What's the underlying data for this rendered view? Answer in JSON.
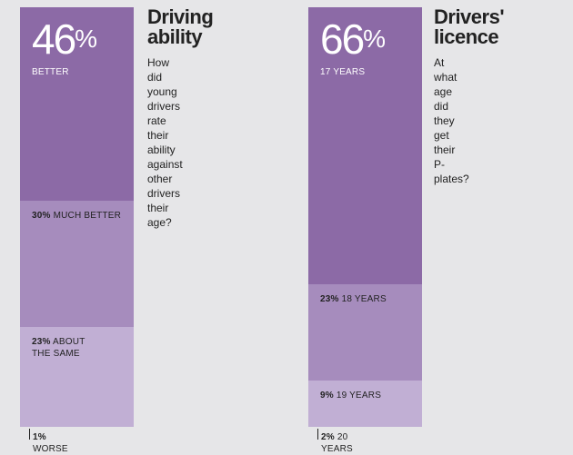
{
  "colors": {
    "background": "#e6e6e8",
    "dark": "#8c6aa6",
    "mid": "#a68cbd",
    "light": "#c1afd4",
    "text": "#222222"
  },
  "chart_data": [
    {
      "type": "bar",
      "stacked": true,
      "title": "Driving ability",
      "subtitle": "How did young drivers rate their ability against other drivers their age?",
      "unit": "%",
      "categories": [
        "BETTER",
        "MUCH BETTER",
        "ABOUT THE SAME",
        "WORSE"
      ],
      "values": [
        46,
        30,
        23,
        1
      ],
      "headline": {
        "value": "46",
        "sign": "%",
        "label": "BETTER"
      },
      "labels": [
        {
          "pct": "30%",
          "text": "MUCH BETTER"
        },
        {
          "pct": "23%",
          "text": "ABOUT THE SAME"
        },
        {
          "pct": "1%",
          "text": "WORSE"
        }
      ]
    },
    {
      "type": "bar",
      "stacked": true,
      "title": "Drivers' licence",
      "subtitle": "At what age did they get their P-plates?",
      "unit": "%",
      "categories": [
        "17 YEARS",
        "18 YEARS",
        "19 YEARS",
        "20 YEARS"
      ],
      "values": [
        66,
        23,
        9,
        2
      ],
      "headline": {
        "value": "66",
        "sign": "%",
        "label": "17 YEARS"
      },
      "labels": [
        {
          "pct": "23%",
          "text": "18 YEARS"
        },
        {
          "pct": "9%",
          "text": "19 YEARS"
        },
        {
          "pct": "2%",
          "text": "20 YEARS"
        }
      ]
    }
  ],
  "panels": [
    {
      "title_line1": "Driving",
      "title_line2": "ability",
      "question_lines": [
        "How did young drivers",
        "rate their ability against",
        "other drivers their age?"
      ]
    },
    {
      "title_line1": "Drivers'",
      "title_line2": "licence",
      "question_lines": [
        "At what age did",
        "they get their",
        "P-plates?"
      ]
    }
  ]
}
